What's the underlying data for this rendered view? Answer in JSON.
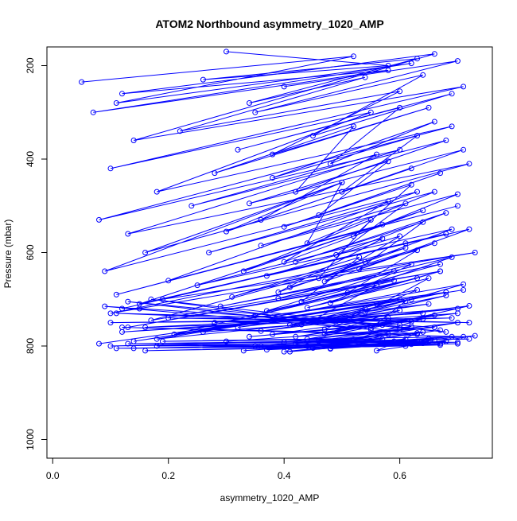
{
  "chart_data": {
    "type": "line",
    "title": "ATOM2 Northbound asymmetry_1020_AMP",
    "xlabel": "asymmetry_1020_AMP",
    "ylabel": "Pressure (mbar)",
    "xlim": [
      -0.01,
      0.76
    ],
    "ylim": [
      1040,
      160
    ],
    "y_reversed": true,
    "x_ticks": [
      0.0,
      0.2,
      0.4,
      0.6
    ],
    "x_tick_labels": [
      "0.0",
      "0.2",
      "0.4",
      "0.6"
    ],
    "y_ticks": [
      200,
      400,
      600,
      800,
      1000
    ],
    "y_tick_labels": [
      "200",
      "400",
      "600",
      "800",
      "1000"
    ],
    "grid": false,
    "series_color": "#0000ff",
    "marker": "open-circle",
    "series": [
      {
        "x": [
          0.05,
          0.52,
          0.11,
          0.62,
          0.07,
          0.58,
          0.12,
          0.66,
          0.14,
          0.71,
          0.1,
          0.55,
          0.18,
          0.69,
          0.08,
          0.6,
          0.13,
          0.72,
          0.16,
          0.5,
          0.09,
          0.63,
          0.2,
          0.7,
          0.11,
          0.57,
          0.15,
          0.68,
          0.12,
          0.61,
          0.19,
          0.73,
          0.1,
          0.54,
          0.17,
          0.67,
          0.13,
          0.59,
          0.21,
          0.71,
          0.14,
          0.62,
          0.08,
          0.56,
          0.18,
          0.7,
          0.12,
          0.64,
          0.16,
          0.69,
          0.1,
          0.58,
          0.2,
          0.72,
          0.11,
          0.6,
          0.15,
          0.66,
          0.09,
          0.55,
          0.13,
          0.68,
          0.17,
          0.63,
          0.12,
          0.71,
          0.19,
          0.57,
          0.1,
          0.65,
          0.14,
          0.7,
          0.16,
          0.61,
          0.11,
          0.67,
          0.18,
          0.59,
          0.13,
          0.72
        ],
        "y": [
          235,
          180,
          280,
          195,
          300,
          210,
          260,
          175,
          360,
          245,
          420,
          300,
          470,
          330,
          530,
          380,
          560,
          410,
          600,
          450,
          640,
          470,
          660,
          500,
          690,
          540,
          710,
          560,
          720,
          580,
          700,
          600,
          730,
          620,
          745,
          640,
          760,
          660,
          775,
          680,
          790,
          700,
          795,
          710,
          785,
          720,
          770,
          730,
          760,
          740,
          750,
          745,
          740,
          750,
          730,
          755,
          720,
          760,
          715,
          765,
          705,
          770,
          700,
          775,
          760,
          780,
          790,
          785,
          800,
          790,
          805,
          795,
          810,
          800,
          805,
          795,
          800,
          790,
          795,
          785
        ]
      },
      {
        "x": [
          0.3,
          0.58,
          0.26,
          0.63,
          0.34,
          0.54,
          0.22,
          0.6,
          0.38,
          0.65,
          0.28,
          0.52,
          0.42,
          0.68,
          0.24,
          0.56,
          0.36,
          0.62,
          0.3,
          0.5,
          0.44,
          0.66,
          0.27,
          0.58,
          0.4,
          0.64,
          0.33,
          0.55,
          0.46,
          0.69,
          0.25,
          0.57,
          0.39,
          0.61,
          0.31,
          0.53,
          0.43,
          0.67,
          0.29,
          0.59,
          0.37,
          0.63,
          0.35,
          0.56,
          0.45,
          0.68,
          0.28,
          0.6,
          0.41,
          0.65,
          0.32,
          0.54,
          0.47,
          0.7,
          0.26,
          0.58,
          0.38,
          0.62,
          0.34,
          0.57,
          0.44,
          0.66,
          0.3,
          0.6,
          0.42,
          0.64,
          0.36,
          0.58,
          0.48,
          0.69,
          0.33,
          0.61,
          0.4,
          0.63,
          0.37,
          0.6,
          0.45,
          0.67,
          0.35,
          0.62
        ],
        "y": [
          170,
          200,
          230,
          185,
          280,
          225,
          340,
          255,
          390,
          290,
          430,
          330,
          470,
          360,
          500,
          390,
          530,
          420,
          555,
          450,
          580,
          470,
          600,
          490,
          620,
          510,
          640,
          530,
          655,
          550,
          670,
          570,
          685,
          590,
          695,
          610,
          705,
          625,
          715,
          640,
          725,
          655,
          735,
          670,
          745,
          685,
          750,
          700,
          755,
          710,
          760,
          720,
          765,
          730,
          770,
          740,
          775,
          748,
          780,
          755,
          785,
          760,
          790,
          765,
          795,
          770,
          800,
          775,
          805,
          780,
          810,
          785,
          812,
          790,
          808,
          795,
          804,
          798,
          800,
          796
        ]
      },
      {
        "x": [
          0.4,
          0.7,
          0.35,
          0.64,
          0.45,
          0.69,
          0.32,
          0.6,
          0.48,
          0.66,
          0.38,
          0.63,
          0.5,
          0.71,
          0.34,
          0.58,
          0.46,
          0.67,
          0.4,
          0.62,
          0.52,
          0.7,
          0.36,
          0.61,
          0.49,
          0.68,
          0.42,
          0.64,
          0.53,
          0.72,
          0.37,
          0.6,
          0.47,
          0.66,
          0.41,
          0.63,
          0.51,
          0.69,
          0.39,
          0.62,
          0.48,
          0.67,
          0.44,
          0.65,
          0.54,
          0.71,
          0.38,
          0.63,
          0.5,
          0.68,
          0.43,
          0.61,
          0.55,
          0.72,
          0.36,
          0.6,
          0.47,
          0.66,
          0.42,
          0.64,
          0.52,
          0.7,
          0.4,
          0.62,
          0.49,
          0.67,
          0.45,
          0.63,
          0.56,
          0.73,
          0.41,
          0.65,
          0.48,
          0.68,
          0.44,
          0.64,
          0.53,
          0.7,
          0.46,
          0.66
        ],
        "y": [
          245,
          190,
          300,
          220,
          350,
          260,
          380,
          290,
          410,
          320,
          440,
          350,
          470,
          380,
          495,
          405,
          520,
          430,
          545,
          455,
          565,
          475,
          585,
          495,
          605,
          515,
          620,
          535,
          635,
          550,
          650,
          565,
          662,
          580,
          674,
          595,
          686,
          610,
          698,
          625,
          708,
          640,
          718,
          655,
          728,
          668,
          738,
          680,
          746,
          692,
          754,
          704,
          762,
          714,
          768,
          724,
          774,
          734,
          780,
          742,
          786,
          750,
          792,
          758,
          798,
          766,
          804,
          772,
          810,
          778,
          812,
          784,
          806,
          790,
          800,
          794,
          796,
          792,
          790,
          788
        ]
      }
    ]
  }
}
